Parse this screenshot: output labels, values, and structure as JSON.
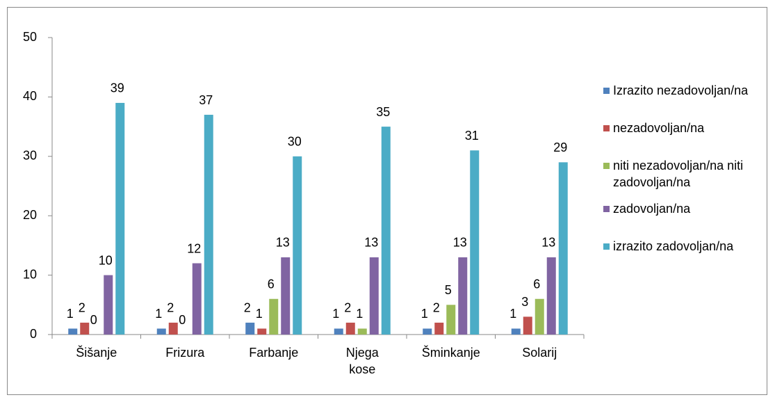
{
  "chart_data": {
    "type": "bar",
    "categories": [
      "Šišanje",
      "Frizura",
      "Farbanje",
      "Njega kose",
      "Šminkanje",
      "Solarij"
    ],
    "series": [
      {
        "name": "Izrazito nezadovoljan/na",
        "color": "#4f81bd",
        "values": [
          1,
          1,
          2,
          1,
          1,
          1
        ]
      },
      {
        "name": "nezadovoljan/na",
        "color": "#c0504d",
        "values": [
          2,
          2,
          1,
          2,
          2,
          3
        ]
      },
      {
        "name": "niti nezadovoljan/na niti zadovoljan/na",
        "color": "#9bbb59",
        "values": [
          0,
          0,
          6,
          1,
          5,
          6
        ]
      },
      {
        "name": "zadovoljan/na",
        "color": "#8064a2",
        "values": [
          10,
          12,
          13,
          13,
          13,
          13
        ]
      },
      {
        "name": "izrazito zadovoljan/na",
        "color": "#4bacc6",
        "values": [
          39,
          37,
          30,
          35,
          31,
          29
        ]
      }
    ],
    "ylim": [
      0,
      50
    ],
    "yticks": [
      0,
      10,
      20,
      30,
      40,
      50
    ],
    "grid": false,
    "legend": "right"
  }
}
